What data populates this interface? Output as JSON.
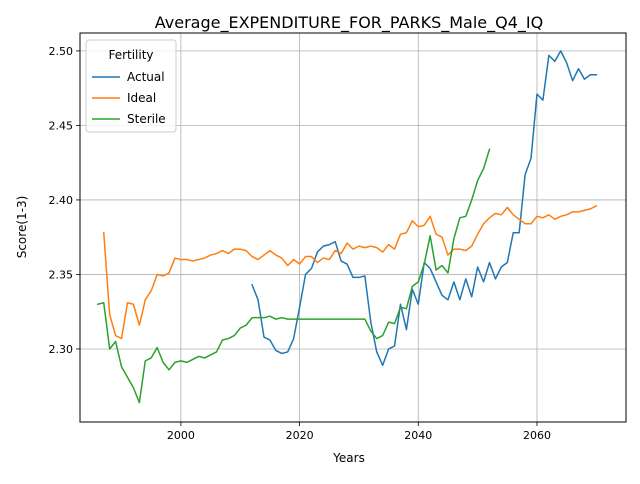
{
  "chart_data": {
    "type": "line",
    "title": "Average_EXPENDITURE_FOR_PARKS_Male_Q4_IQ",
    "xlabel": "Years",
    "ylabel": "Score(1-3)",
    "xlim": [
      1983,
      2075
    ],
    "ylim": [
      2.251,
      2.512
    ],
    "xticks": [
      2000,
      2020,
      2040,
      2060
    ],
    "yticks": [
      2.3,
      2.35,
      2.4,
      2.45,
      2.5
    ],
    "xtick_labels": [
      "2000",
      "2020",
      "2040",
      "2060"
    ],
    "ytick_labels": [
      "2.30",
      "2.35",
      "2.40",
      "2.45",
      "2.50"
    ],
    "grid": true,
    "legend": {
      "title": "Fertility",
      "placement": "top-left"
    },
    "series": [
      {
        "name": "Actual",
        "color": "#1f77b4",
        "x": [
          2012,
          2013,
          2014,
          2015,
          2016,
          2017,
          2018,
          2019,
          2020,
          2021,
          2022,
          2023,
          2024,
          2025,
          2026,
          2027,
          2028,
          2029,
          2030,
          2031,
          2032,
          2033,
          2034,
          2035,
          2036,
          2037,
          2038,
          2039,
          2040,
          2041,
          2042,
          2043,
          2044,
          2045,
          2046,
          2047,
          2048,
          2049,
          2050,
          2051,
          2052,
          2053,
          2054,
          2055,
          2056,
          2057,
          2058,
          2059,
          2060,
          2061,
          2062,
          2063,
          2064,
          2065,
          2066,
          2067,
          2068,
          2069,
          2070
        ],
        "y": [
          2.343,
          2.333,
          2.308,
          2.306,
          2.299,
          2.297,
          2.298,
          2.307,
          2.328,
          2.35,
          2.354,
          2.365,
          2.369,
          2.37,
          2.372,
          2.359,
          2.357,
          2.348,
          2.348,
          2.349,
          2.318,
          2.298,
          2.289,
          2.3,
          2.302,
          2.33,
          2.313,
          2.34,
          2.33,
          2.358,
          2.354,
          2.345,
          2.336,
          2.333,
          2.345,
          2.333,
          2.347,
          2.335,
          2.355,
          2.345,
          2.358,
          2.347,
          2.355,
          2.358,
          2.378,
          2.378,
          2.417,
          2.428,
          2.471,
          2.467,
          2.497,
          2.493,
          2.5,
          2.492,
          2.48,
          2.488,
          2.481,
          2.484,
          2.484
        ]
      },
      {
        "name": "Ideal",
        "color": "#ff7f0e",
        "x": [
          1987,
          1988,
          1989,
          1990,
          1991,
          1992,
          1993,
          1994,
          1995,
          1996,
          1997,
          1998,
          1999,
          2000,
          2001,
          2002,
          2003,
          2004,
          2005,
          2006,
          2007,
          2008,
          2009,
          2010,
          2011,
          2012,
          2013,
          2014,
          2015,
          2016,
          2017,
          2018,
          2019,
          2020,
          2021,
          2022,
          2023,
          2024,
          2025,
          2026,
          2027,
          2028,
          2029,
          2030,
          2031,
          2032,
          2033,
          2034,
          2035,
          2036,
          2037,
          2038,
          2039,
          2040,
          2041,
          2042,
          2043,
          2044,
          2045,
          2046,
          2047,
          2048,
          2049,
          2050,
          2051,
          2052,
          2053,
          2054,
          2055,
          2056,
          2057,
          2058,
          2059,
          2060,
          2061,
          2062,
          2063,
          2064,
          2065,
          2066,
          2067,
          2068,
          2069,
          2070
        ],
        "y": [
          2.378,
          2.323,
          2.309,
          2.307,
          2.331,
          2.33,
          2.316,
          2.333,
          2.339,
          2.35,
          2.349,
          2.351,
          2.361,
          2.36,
          2.36,
          2.359,
          2.36,
          2.361,
          2.363,
          2.364,
          2.366,
          2.364,
          2.367,
          2.367,
          2.366,
          2.362,
          2.36,
          2.363,
          2.366,
          2.363,
          2.361,
          2.356,
          2.36,
          2.357,
          2.362,
          2.362,
          2.358,
          2.361,
          2.36,
          2.366,
          2.364,
          2.371,
          2.367,
          2.369,
          2.368,
          2.369,
          2.368,
          2.365,
          2.37,
          2.367,
          2.377,
          2.378,
          2.386,
          2.382,
          2.383,
          2.389,
          2.377,
          2.375,
          2.363,
          2.367,
          2.367,
          2.366,
          2.369,
          2.377,
          2.384,
          2.388,
          2.391,
          2.39,
          2.395,
          2.39,
          2.387,
          2.384,
          2.384,
          2.389,
          2.388,
          2.39,
          2.387,
          2.389,
          2.39,
          2.392,
          2.392,
          2.393,
          2.394,
          2.396
        ]
      },
      {
        "name": "Sterile",
        "color": "#2ca02c",
        "x": [
          1986,
          1987,
          1988,
          1989,
          1990,
          1991,
          1992,
          1993,
          1994,
          1995,
          1996,
          1997,
          1998,
          1999,
          2000,
          2001,
          2002,
          2003,
          2004,
          2005,
          2006,
          2007,
          2008,
          2009,
          2010,
          2011,
          2012,
          2013,
          2014,
          2015,
          2016,
          2017,
          2018,
          2019,
          2020,
          2021,
          2022,
          2023,
          2024,
          2025,
          2026,
          2027,
          2028,
          2029,
          2030,
          2031,
          2032,
          2033,
          2034,
          2035,
          2036,
          2037,
          2038,
          2039,
          2040,
          2041,
          2042,
          2043,
          2044,
          2045,
          2046,
          2047,
          2048,
          2049,
          2050,
          2051,
          2052
        ],
        "y": [
          2.33,
          2.331,
          2.3,
          2.305,
          2.288,
          2.281,
          2.274,
          2.264,
          2.292,
          2.294,
          2.301,
          2.291,
          2.286,
          2.291,
          2.292,
          2.291,
          2.293,
          2.295,
          2.294,
          2.296,
          2.298,
          2.306,
          2.307,
          2.309,
          2.314,
          2.316,
          2.321,
          2.321,
          2.321,
          2.322,
          2.32,
          2.321,
          2.32,
          2.32,
          2.32,
          2.32,
          2.32,
          2.32,
          2.32,
          2.32,
          2.32,
          2.32,
          2.32,
          2.32,
          2.32,
          2.32,
          2.312,
          2.307,
          2.309,
          2.318,
          2.317,
          2.328,
          2.327,
          2.342,
          2.345,
          2.357,
          2.376,
          2.353,
          2.356,
          2.351,
          2.374,
          2.388,
          2.389,
          2.4,
          2.413,
          2.421,
          2.434
        ]
      }
    ]
  }
}
